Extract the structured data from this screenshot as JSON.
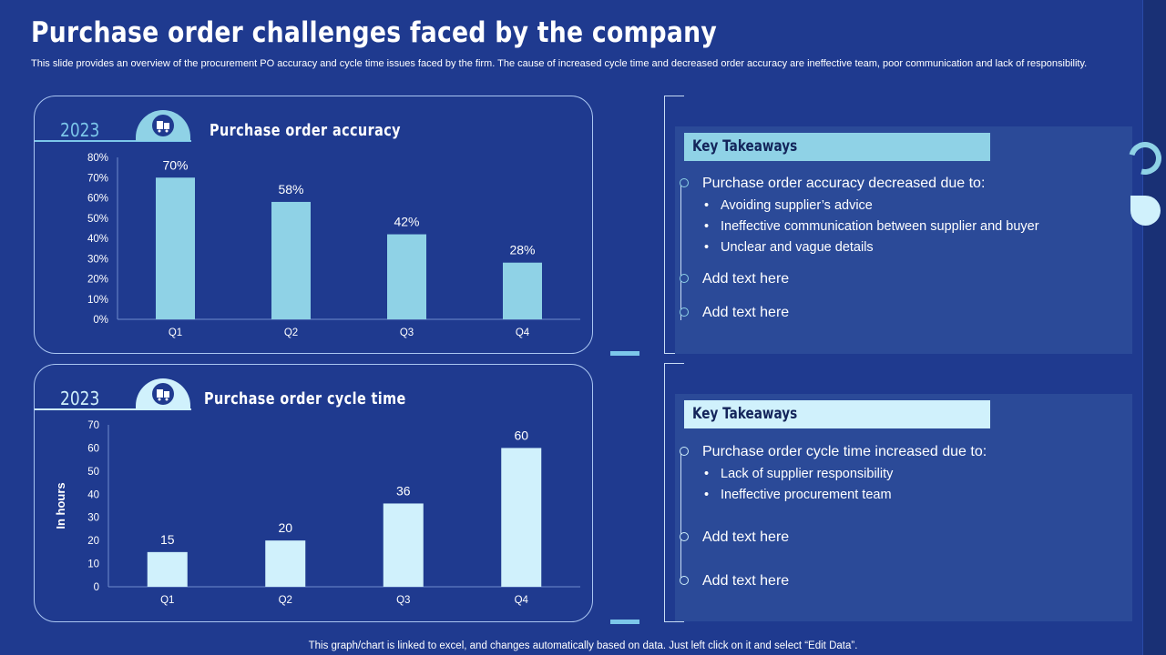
{
  "title": "Purchase order challenges faced by the company",
  "subtitle": "This slide provides an overview of the procurement PO accuracy and cycle time issues faced by the firm. The cause of increased cycle time and decreased order accuracy are ineffective team, poor communication and lack of responsibility.",
  "footer": "This graph/chart is linked to excel,  and changes automatically based on data. Just left click on it and select “Edit Data”.",
  "colors": {
    "background": "#1f3a8f",
    "accent1": "#8fd2e6",
    "accent2": "#d0f1fc",
    "box": "#2b4a98"
  },
  "panel1": {
    "year": "2023",
    "title": "Purchase order accuracy",
    "icon": "purchase-order-icon",
    "takeaways": {
      "header": "Key Takeaways",
      "main": "Purchase order accuracy decreased due to:",
      "bullets": [
        "Avoiding supplier’s advice",
        "Ineffective communication between supplier and buyer",
        "Unclear and vague details"
      ],
      "extra1": "Add text here",
      "extra2": "Add text here"
    }
  },
  "panel2": {
    "year": "2023",
    "title": "Purchase order cycle time",
    "icon": "purchase-order-icon",
    "takeaways": {
      "header": "Key Takeaways",
      "main": "Purchase order cycle time increased due to:",
      "bullets": [
        "Lack of supplier responsibility",
        "Ineffective procurement team"
      ],
      "extra1": "Add text here",
      "extra2": "Add text here"
    }
  },
  "chart_data": [
    {
      "type": "bar",
      "title": "Purchase order accuracy",
      "categories": [
        "Q1",
        "Q2",
        "Q3",
        "Q4"
      ],
      "values": [
        70,
        58,
        42,
        28
      ],
      "value_labels": [
        "70%",
        "58%",
        "42%",
        "28%"
      ],
      "yticks": [
        "0%",
        "10%",
        "20%",
        "30%",
        "40%",
        "50%",
        "60%",
        "70%",
        "80%"
      ],
      "ylim": [
        0,
        80
      ],
      "xlabel": "",
      "ylabel": "",
      "color": "#8fd2e6"
    },
    {
      "type": "bar",
      "title": "Purchase order cycle time",
      "categories": [
        "Q1",
        "Q2",
        "Q3",
        "Q4"
      ],
      "values": [
        15,
        20,
        36,
        60
      ],
      "value_labels": [
        "15",
        "20",
        "36",
        "60"
      ],
      "yticks": [
        "0",
        "10",
        "20",
        "30",
        "40",
        "50",
        "60",
        "70"
      ],
      "ylim": [
        0,
        70
      ],
      "xlabel": "",
      "ylabel": "In hours",
      "color": "#d0f1fc"
    }
  ]
}
